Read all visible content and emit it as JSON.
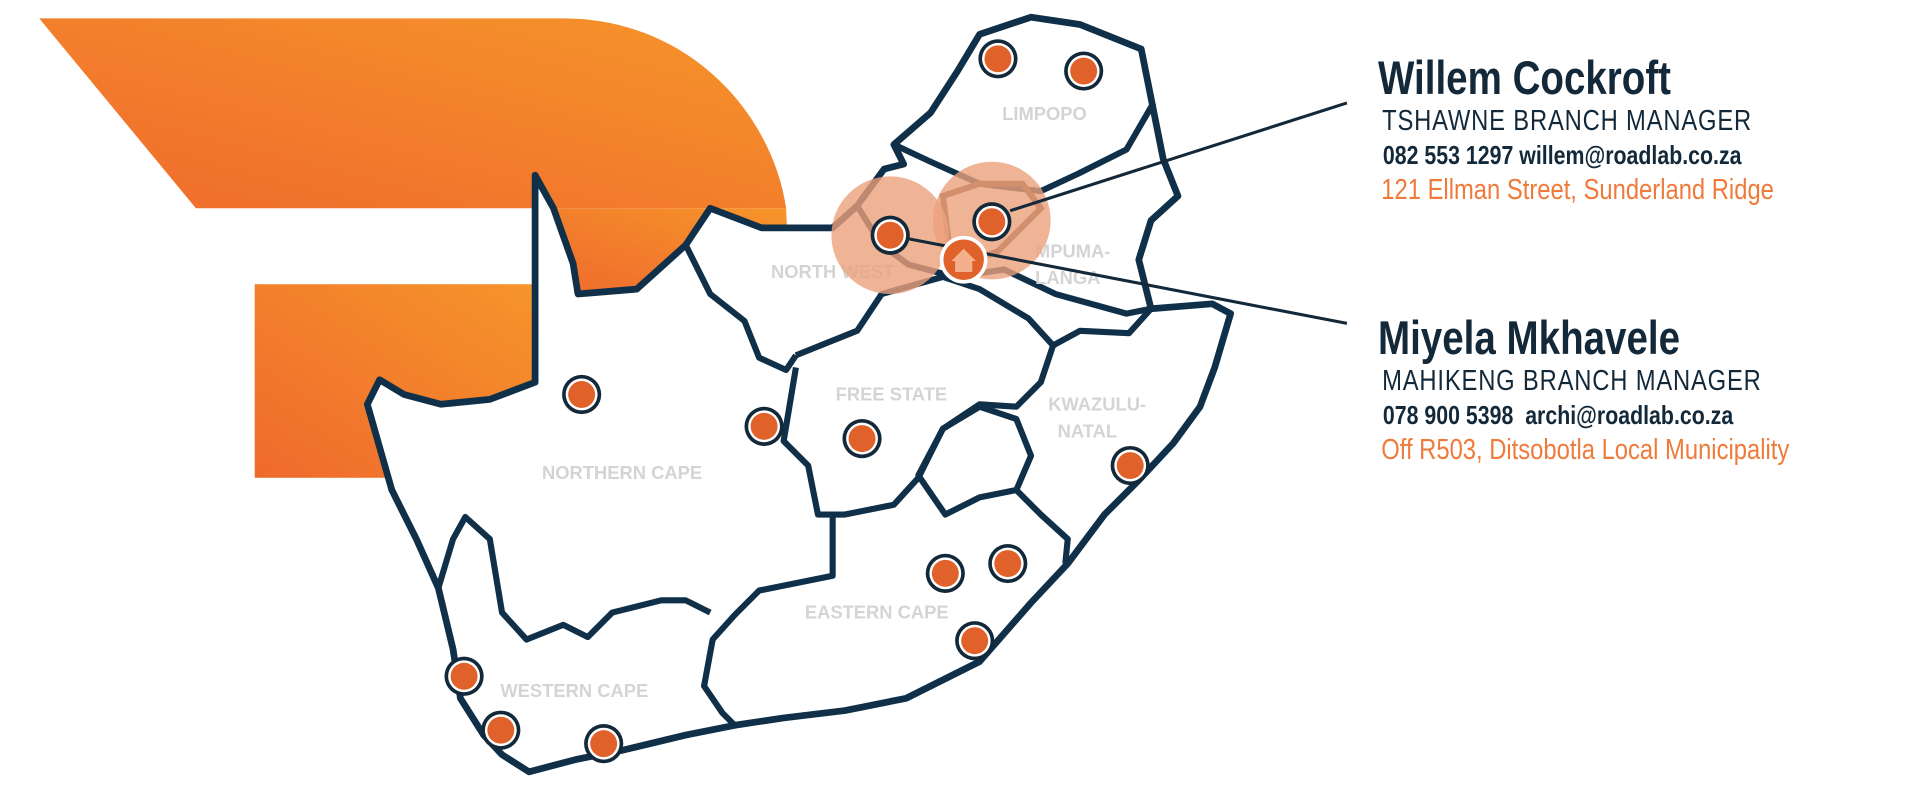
{
  "colors": {
    "brand_orange": "#f07030",
    "brand_orange_light": "#f5932a",
    "outline": "#0f3048",
    "marker": "#e0622a",
    "halo": "#eba07c",
    "label_gray": "#d4d4d4",
    "address": "#f07a3a"
  },
  "map": {
    "provinces": [
      "LIMPOPO",
      "NORTH WEST",
      "MPUMA-",
      "LANGA",
      "FREE STATE",
      "KWAZULU-",
      "NATAL",
      "NORTHERN CAPE",
      "EASTERN CAPE",
      "WESTERN CAPE"
    ],
    "home_icon": "house-icon",
    "branch_count": 15
  },
  "contacts": [
    {
      "name": "Willem Cockroft",
      "title": "TSHAWNE BRANCH MANAGER",
      "phone": "082 553 1297",
      "email": "willem@roadlab.co.za",
      "address": "121 Ellman Street, Sunderland Ridge"
    },
    {
      "name": "Miyela Mkhavele",
      "title": "MAHIKENG BRANCH MANAGER",
      "phone": "078 900 5398",
      "email": "archi@roadlab.co.za",
      "address": "Off R503, Ditsobotla Local Municipality"
    }
  ]
}
